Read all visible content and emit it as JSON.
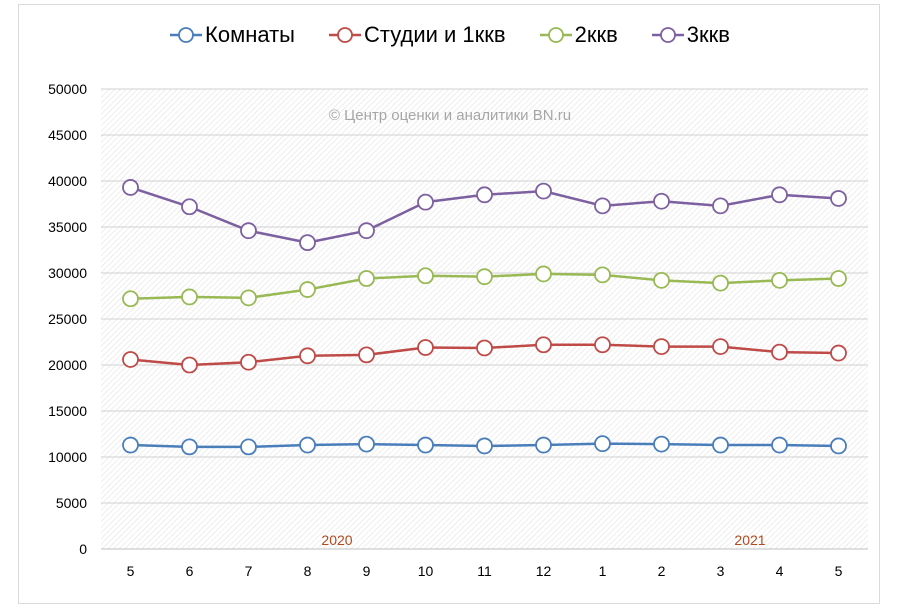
{
  "chart_data": {
    "type": "line",
    "watermark": "© Центр оценки и аналитики BN.ru",
    "categories": [
      "5",
      "6",
      "7",
      "8",
      "9",
      "10",
      "11",
      "12",
      "1",
      "2",
      "3",
      "4",
      "5"
    ],
    "year_labels": [
      {
        "text": "2020",
        "at_index": 3.5
      },
      {
        "text": "2021",
        "at_index": 10.5
      }
    ],
    "ylim": [
      0,
      50000
    ],
    "yticks": [
      0,
      5000,
      10000,
      15000,
      20000,
      25000,
      30000,
      35000,
      40000,
      45000,
      50000
    ],
    "grid": true,
    "legend_position": "top",
    "series": [
      {
        "name": "Комнаты",
        "color": "#4a7ebb",
        "values": [
          11300,
          11100,
          11100,
          11300,
          11400,
          11300,
          11200,
          11300,
          11450,
          11400,
          11300,
          11300,
          11200
        ]
      },
      {
        "name": "Студии и 1ккв",
        "color": "#be4b48",
        "values": [
          20600,
          20000,
          20300,
          21000,
          21100,
          21900,
          21850,
          22200,
          22200,
          22000,
          22000,
          21400,
          21300
        ]
      },
      {
        "name": "2ккв",
        "color": "#98b954",
        "values": [
          27200,
          27400,
          27300,
          28200,
          29400,
          29700,
          29600,
          29900,
          29800,
          29200,
          28900,
          29200,
          29400
        ]
      },
      {
        "name": "3ккв",
        "color": "#7d60a0",
        "values": [
          39300,
          37200,
          34600,
          33300,
          34600,
          37700,
          38500,
          38900,
          37300,
          37800,
          37300,
          38500,
          38100
        ]
      }
    ]
  }
}
